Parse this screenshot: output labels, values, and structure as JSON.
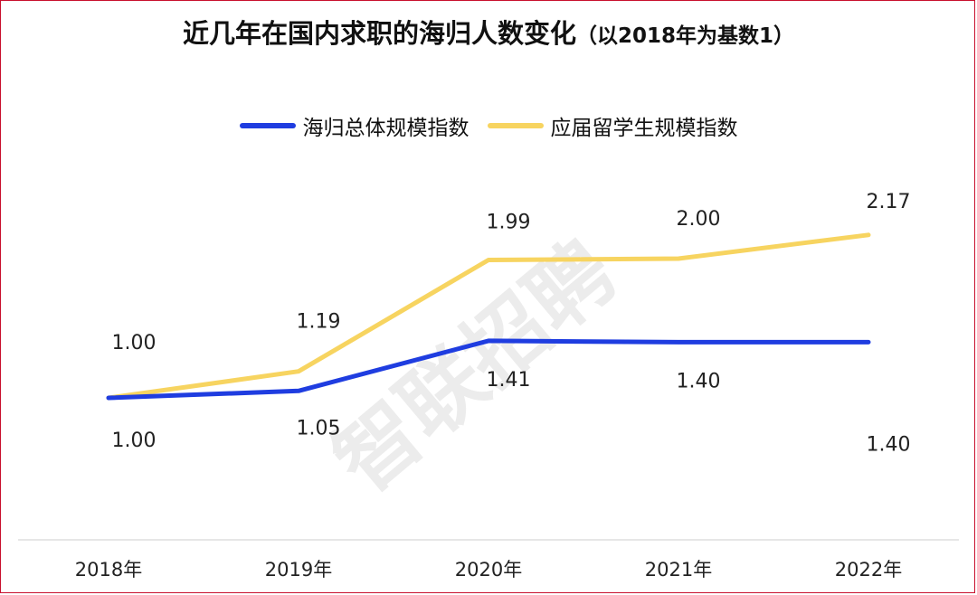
{
  "watermark": "智联招聘",
  "chart_data": {
    "type": "line",
    "title": "近几年在国内求职的海归人数变化",
    "subtitle": "（以2018年为基数1）",
    "categories": [
      "2018年",
      "2019年",
      "2020年",
      "2021年",
      "2022年"
    ],
    "series": [
      {
        "name": "海归总体规模指数",
        "color": "#1f3de0",
        "values": [
          1.0,
          1.05,
          1.41,
          1.4,
          1.4
        ],
        "labels": [
          "1.00",
          "1.05",
          "1.41",
          "1.40",
          "1.40"
        ]
      },
      {
        "name": "应届留学生规模指数",
        "color": "#f7d460",
        "values": [
          1.0,
          1.19,
          1.99,
          2.0,
          2.17
        ],
        "labels": [
          "1.00",
          "1.19",
          "1.99",
          "2.00",
          "2.17"
        ]
      }
    ],
    "legend_position": "top",
    "grid": false
  }
}
